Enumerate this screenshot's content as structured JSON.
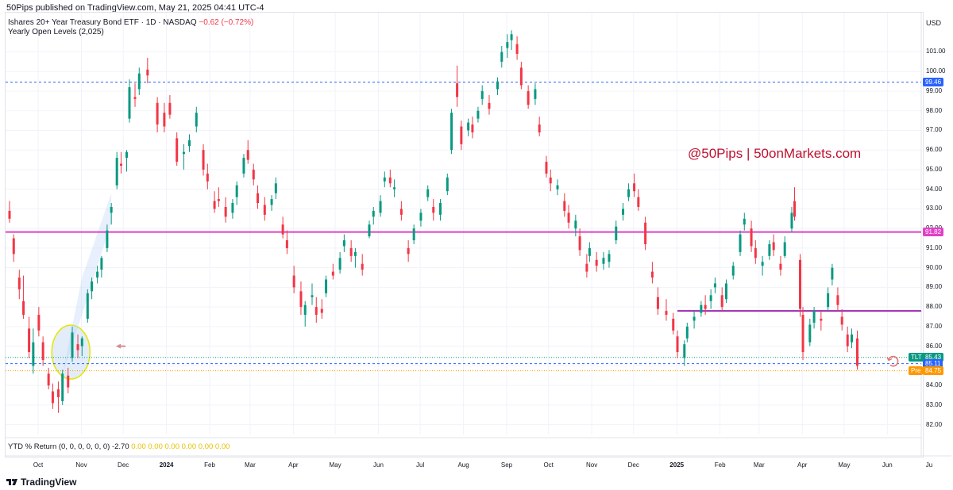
{
  "header": {
    "published": "50Pips published on TradingView.com, May 21, 2025 04:41 UTC-4",
    "symbol_line": "Ishares 20+ Year Treasury Bond ETF · 1D · NASDAQ",
    "change": "−0.62 (−0.72%)",
    "indicator_line": "Yearly Open Levels (2,025)",
    "currency": "USD"
  },
  "watermark": "@50Pips | 50onMarkets.com",
  "ytd": {
    "label": "YTD % Return (0, 0, 0, 0, 0, 0)",
    "value": "-2.70",
    "zeros": "0.00 0.00 0.00 0.00 0.00 0.00"
  },
  "footer": {
    "brand": "TradingView"
  },
  "colors": {
    "up": "#089981",
    "down": "#f23645",
    "magenta": "#e040c8",
    "purple": "#9c27b0",
    "blue": "#2962ff",
    "orange": "#ff9800",
    "highlight_stroke": "#e5e500",
    "highlight_fill": "#dbe9f7"
  },
  "chart_data": {
    "type": "candlestick",
    "ylim": [
      81.5,
      103.0
    ],
    "y_ticks": [
      "82.00",
      "83.00",
      "84.00",
      "85.00",
      "86.00",
      "87.00",
      "88.00",
      "89.00",
      "90.00",
      "91.00",
      "92.00",
      "93.00",
      "94.00",
      "95.00",
      "96.00",
      "97.00",
      "98.00",
      "99.00",
      "100.00",
      "101.00"
    ],
    "x_ticks": [
      {
        "label": "Oct",
        "x": "2023-10-01",
        "bold": false
      },
      {
        "label": "Nov",
        "x": "2023-11-01",
        "bold": false
      },
      {
        "label": "Dec",
        "x": "2023-12-01",
        "bold": false
      },
      {
        "label": "2024",
        "x": "2024-01-01",
        "bold": true
      },
      {
        "label": "Feb",
        "x": "2024-02-01",
        "bold": false
      },
      {
        "label": "Mar",
        "x": "2024-03-01",
        "bold": false
      },
      {
        "label": "Apr",
        "x": "2024-04-01",
        "bold": false
      },
      {
        "label": "May",
        "x": "2024-05-01",
        "bold": false
      },
      {
        "label": "Jun",
        "x": "2024-06-01",
        "bold": false
      },
      {
        "label": "Jul",
        "x": "2024-07-01",
        "bold": false
      },
      {
        "label": "Aug",
        "x": "2024-08-01",
        "bold": false
      },
      {
        "label": "Sep",
        "x": "2024-09-01",
        "bold": false
      },
      {
        "label": "Oct",
        "x": "2024-10-01",
        "bold": false
      },
      {
        "label": "Nov",
        "x": "2024-11-01",
        "bold": false
      },
      {
        "label": "Dec",
        "x": "2024-12-01",
        "bold": false
      },
      {
        "label": "2025",
        "x": "2025-01-01",
        "bold": true
      },
      {
        "label": "Feb",
        "x": "2025-02-01",
        "bold": false
      },
      {
        "label": "Mar",
        "x": "2025-03-01",
        "bold": false
      },
      {
        "label": "Apr",
        "x": "2025-04-01",
        "bold": false
      },
      {
        "label": "May",
        "x": "2025-05-01",
        "bold": false
      },
      {
        "label": "Jun",
        "x": "2025-06-01",
        "bold": false
      },
      {
        "label": "Ju",
        "x": "2025-07-01",
        "bold": false
      }
    ],
    "x_range": [
      "2023-09-19",
      "2025-07-01"
    ],
    "levels": [
      {
        "value": 99.46,
        "label": "99.46",
        "style": "dashed",
        "color": "#2962ff"
      },
      {
        "value": 91.82,
        "label": "91.82",
        "style": "solid",
        "color": "#e040c8"
      },
      {
        "value": 87.8,
        "label": "",
        "style": "solid",
        "color": "#9c27b0",
        "from": "2025-01-10"
      },
      {
        "value": 85.43,
        "label": "85.43",
        "tag": "TLT",
        "style": "dotted",
        "color": "#089981"
      },
      {
        "value": 85.11,
        "label": "85.11",
        "style": "dashed",
        "color": "#2962ff"
      },
      {
        "value": 84.75,
        "label": "84.75",
        "tag": "Pre",
        "style": "dotted",
        "color": "#ff9800"
      }
    ],
    "candles": [
      [
        "2023-09-19",
        92.9,
        93.4,
        92.3,
        92.5
      ],
      [
        "2023-09-22",
        91.5,
        91.7,
        90.3,
        90.7
      ],
      [
        "2023-09-26",
        89.5,
        89.9,
        88.4,
        88.9
      ],
      [
        "2023-09-29",
        88.3,
        89.6,
        87.4,
        87.6
      ],
      [
        "2023-10-03",
        86.9,
        87.5,
        85.4,
        85.7
      ],
      [
        "2023-10-06",
        85.0,
        86.9,
        84.6,
        86.2
      ],
      [
        "2023-10-10",
        87.6,
        88.0,
        86.5,
        86.8
      ],
      [
        "2023-10-13",
        86.2,
        86.5,
        85.0,
        85.3
      ],
      [
        "2023-10-17",
        84.6,
        84.9,
        83.8,
        84.0
      ],
      [
        "2023-10-20",
        83.7,
        84.1,
        82.8,
        83.1
      ],
      [
        "2023-10-24",
        83.8,
        84.2,
        82.6,
        83.4
      ],
      [
        "2023-10-27",
        83.2,
        84.8,
        83.0,
        84.6
      ],
      [
        "2023-10-31",
        84.5,
        84.9,
        83.6,
        83.9
      ],
      [
        "2023-11-03",
        85.4,
        87.0,
        85.2,
        86.7
      ],
      [
        "2023-11-07",
        86.1,
        86.6,
        85.4,
        85.8
      ],
      [
        "2023-11-10",
        86.0,
        86.5,
        85.5,
        86.4
      ],
      [
        "2023-11-14",
        87.4,
        88.9,
        87.2,
        88.7
      ],
      [
        "2023-11-17",
        88.8,
        89.5,
        88.4,
        89.3
      ],
      [
        "2023-11-21",
        89.5,
        90.1,
        89.2,
        89.8
      ],
      [
        "2023-11-24",
        89.9,
        90.6,
        89.5,
        90.5
      ],
      [
        "2023-11-28",
        91.0,
        92.2,
        90.8,
        91.9
      ],
      [
        "2023-12-01",
        92.8,
        93.3,
        92.2,
        93.1
      ],
      [
        "2023-12-05",
        94.2,
        95.9,
        94.0,
        95.6
      ],
      [
        "2023-12-08",
        95.3,
        95.9,
        94.8,
        95.2
      ],
      [
        "2023-12-12",
        95.6,
        96.0,
        94.9,
        95.9
      ],
      [
        "2023-12-14",
        97.6,
        99.6,
        97.4,
        99.2
      ],
      [
        "2023-12-18",
        98.7,
        99.4,
        98.2,
        98.6
      ],
      [
        "2023-12-21",
        99.1,
        100.2,
        98.8,
        99.9
      ],
      [
        "2023-12-27",
        100.1,
        100.7,
        99.4,
        99.8
      ],
      [
        "2024-01-03",
        98.4,
        98.7,
        96.9,
        97.3
      ],
      [
        "2024-01-08",
        97.9,
        98.4,
        96.9,
        97.2
      ],
      [
        "2024-01-12",
        98.4,
        98.8,
        97.6,
        97.8
      ],
      [
        "2024-01-17",
        96.6,
        96.9,
        95.2,
        95.4
      ],
      [
        "2024-01-22",
        95.8,
        96.3,
        95.0,
        95.9
      ],
      [
        "2024-01-26",
        96.2,
        96.8,
        95.9,
        96.5
      ],
      [
        "2024-01-31",
        97.2,
        98.2,
        96.9,
        97.9
      ],
      [
        "2024-02-05",
        96.0,
        96.3,
        94.7,
        95.0
      ],
      [
        "2024-02-08",
        94.8,
        95.3,
        94.0,
        94.4
      ],
      [
        "2024-02-13",
        93.4,
        93.9,
        92.8,
        93.0
      ],
      [
        "2024-02-16",
        93.5,
        94.1,
        93.1,
        93.4
      ],
      [
        "2024-02-21",
        93.1,
        93.6,
        92.3,
        92.6
      ],
      [
        "2024-02-26",
        92.8,
        93.5,
        92.5,
        93.3
      ],
      [
        "2024-02-29",
        93.6,
        94.4,
        93.2,
        94.2
      ],
      [
        "2024-03-05",
        94.8,
        95.8,
        94.6,
        95.6
      ],
      [
        "2024-03-08",
        96.0,
        96.5,
        95.3,
        95.5
      ],
      [
        "2024-03-12",
        95.0,
        95.3,
        94.2,
        94.5
      ],
      [
        "2024-03-15",
        93.8,
        94.2,
        93.0,
        93.3
      ],
      [
        "2024-03-20",
        93.2,
        93.6,
        92.4,
        92.7
      ],
      [
        "2024-03-25",
        93.2,
        93.7,
        92.9,
        93.5
      ],
      [
        "2024-03-28",
        93.8,
        94.6,
        93.5,
        94.3
      ],
      [
        "2024-04-02",
        92.2,
        92.6,
        91.5,
        91.7
      ],
      [
        "2024-04-05",
        91.4,
        91.9,
        90.7,
        91.0
      ],
      [
        "2024-04-10",
        89.6,
        90.1,
        88.7,
        89.0
      ],
      [
        "2024-04-15",
        88.8,
        89.3,
        87.6,
        88.0
      ],
      [
        "2024-04-18",
        87.6,
        88.3,
        87.0,
        88.1
      ],
      [
        "2024-04-23",
        88.5,
        89.2,
        88.1,
        88.6
      ],
      [
        "2024-04-26",
        88.0,
        88.5,
        87.2,
        87.6
      ],
      [
        "2024-04-30",
        87.9,
        88.4,
        87.4,
        87.7
      ],
      [
        "2024-05-03",
        88.7,
        89.6,
        88.5,
        89.4
      ],
      [
        "2024-05-08",
        89.8,
        90.2,
        89.4,
        89.6
      ],
      [
        "2024-05-13",
        89.9,
        90.8,
        89.7,
        90.5
      ],
      [
        "2024-05-16",
        91.1,
        91.7,
        90.8,
        91.4
      ],
      [
        "2024-05-21",
        91.0,
        91.4,
        90.3,
        90.6
      ],
      [
        "2024-05-24",
        90.6,
        91.0,
        90.0,
        90.8
      ],
      [
        "2024-05-29",
        90.2,
        90.7,
        89.6,
        89.9
      ],
      [
        "2024-06-03",
        91.6,
        92.4,
        91.5,
        92.2
      ],
      [
        "2024-06-06",
        92.6,
        93.1,
        92.2,
        92.9
      ],
      [
        "2024-06-11",
        92.8,
        93.7,
        92.6,
        93.4
      ],
      [
        "2024-06-14",
        94.4,
        94.9,
        94.1,
        94.6
      ],
      [
        "2024-06-18",
        94.6,
        95.0,
        94.1,
        94.3
      ],
      [
        "2024-06-21",
        94.0,
        94.5,
        93.6,
        94.1
      ],
      [
        "2024-06-26",
        93.0,
        93.4,
        92.4,
        92.7
      ],
      [
        "2024-07-01",
        91.0,
        91.4,
        90.3,
        90.7
      ],
      [
        "2024-07-05",
        91.4,
        92.2,
        91.2,
        92.0
      ],
      [
        "2024-07-10",
        92.4,
        93.0,
        92.1,
        92.8
      ],
      [
        "2024-07-15",
        93.6,
        94.2,
        93.4,
        94.0
      ],
      [
        "2024-07-19",
        93.1,
        93.5,
        92.4,
        92.8
      ],
      [
        "2024-07-24",
        92.7,
        93.5,
        92.4,
        93.3
      ],
      [
        "2024-07-29",
        93.9,
        94.8,
        93.7,
        94.6
      ],
      [
        "2024-08-01",
        96.0,
        98.1,
        95.8,
        97.9
      ],
      [
        "2024-08-05",
        99.4,
        100.3,
        98.2,
        98.7
      ],
      [
        "2024-08-08",
        97.2,
        97.5,
        96.0,
        96.3
      ],
      [
        "2024-08-13",
        97.0,
        97.6,
        96.7,
        97.4
      ],
      [
        "2024-08-16",
        97.3,
        97.7,
        96.6,
        96.9
      ],
      [
        "2024-08-20",
        97.6,
        98.2,
        97.4,
        98.0
      ],
      [
        "2024-08-23",
        98.6,
        99.3,
        98.3,
        99.0
      ],
      [
        "2024-08-28",
        98.4,
        98.8,
        97.8,
        98.1
      ],
      [
        "2024-09-03",
        99.1,
        99.7,
        98.8,
        99.5
      ],
      [
        "2024-09-06",
        100.5,
        101.3,
        100.2,
        101.0
      ],
      [
        "2024-09-10",
        101.2,
        101.9,
        100.7,
        101.5
      ],
      [
        "2024-09-13",
        101.6,
        102.1,
        101.1,
        101.9
      ],
      [
        "2024-09-17",
        101.4,
        101.8,
        100.6,
        100.9
      ],
      [
        "2024-09-20",
        100.2,
        100.5,
        99.1,
        99.3
      ],
      [
        "2024-09-25",
        99.0,
        99.3,
        98.1,
        98.3
      ],
      [
        "2024-09-30",
        98.6,
        99.4,
        98.3,
        99.1
      ],
      [
        "2024-10-03",
        97.3,
        97.7,
        96.7,
        96.9
      ],
      [
        "2024-10-08",
        95.4,
        95.7,
        94.6,
        94.8
      ],
      [
        "2024-10-11",
        94.6,
        95.0,
        93.9,
        94.3
      ],
      [
        "2024-10-16",
        94.0,
        94.5,
        93.7,
        94.2
      ],
      [
        "2024-10-21",
        93.4,
        93.8,
        92.6,
        92.9
      ],
      [
        "2024-10-24",
        92.8,
        93.2,
        92.0,
        92.3
      ],
      [
        "2024-10-29",
        92.0,
        92.7,
        91.6,
        92.4
      ],
      [
        "2024-11-01",
        91.6,
        92.0,
        90.6,
        90.9
      ],
      [
        "2024-11-06",
        90.2,
        90.7,
        89.5,
        89.8
      ],
      [
        "2024-11-08",
        90.6,
        91.3,
        90.3,
        91.0
      ],
      [
        "2024-11-13",
        90.4,
        90.8,
        89.8,
        90.1
      ],
      [
        "2024-11-18",
        90.2,
        90.8,
        89.9,
        90.5
      ],
      [
        "2024-11-22",
        90.3,
        90.9,
        90.0,
        90.7
      ],
      [
        "2024-11-27",
        91.4,
        92.4,
        91.2,
        92.1
      ],
      [
        "2024-12-02",
        92.7,
        93.3,
        92.4,
        93.0
      ],
      [
        "2024-12-06",
        93.6,
        94.3,
        93.4,
        94.0
      ],
      [
        "2024-12-10",
        94.3,
        94.8,
        93.6,
        93.9
      ],
      [
        "2024-12-13",
        93.6,
        94.0,
        92.9,
        93.1
      ],
      [
        "2024-12-18",
        92.3,
        92.6,
        90.9,
        91.2
      ],
      [
        "2024-12-23",
        89.8,
        90.3,
        89.2,
        89.5
      ],
      [
        "2024-12-27",
        88.5,
        89.0,
        87.6,
        87.9
      ],
      [
        "2025-01-02",
        87.8,
        88.4,
        87.3,
        87.6
      ],
      [
        "2025-01-07",
        87.4,
        87.7,
        86.6,
        86.8
      ],
      [
        "2025-01-10",
        86.5,
        86.8,
        85.4,
        85.7
      ],
      [
        "2025-01-15",
        85.4,
        86.3,
        85.0,
        86.1
      ],
      [
        "2025-01-17",
        86.4,
        87.2,
        86.2,
        87.0
      ],
      [
        "2025-01-22",
        87.3,
        87.8,
        86.9,
        87.5
      ],
      [
        "2025-01-27",
        87.7,
        88.3,
        87.5,
        88.1
      ],
      [
        "2025-01-30",
        88.1,
        88.6,
        87.6,
        87.9
      ],
      [
        "2025-02-03",
        88.3,
        88.9,
        87.9,
        88.6
      ],
      [
        "2025-02-06",
        89.0,
        89.5,
        88.7,
        89.2
      ],
      [
        "2025-02-11",
        88.6,
        89.0,
        87.8,
        88.0
      ],
      [
        "2025-02-14",
        88.4,
        89.4,
        88.2,
        89.2
      ],
      [
        "2025-02-19",
        89.6,
        90.3,
        89.4,
        90.1
      ],
      [
        "2025-02-24",
        90.8,
        91.9,
        90.6,
        91.7
      ],
      [
        "2025-02-27",
        92.2,
        92.8,
        91.9,
        92.5
      ],
      [
        "2025-03-04",
        92.0,
        92.4,
        90.8,
        91.1
      ],
      [
        "2025-03-07",
        91.0,
        91.4,
        90.2,
        90.5
      ],
      [
        "2025-03-12",
        90.1,
        90.6,
        89.6,
        90.3
      ],
      [
        "2025-03-17",
        90.6,
        91.4,
        90.4,
        91.2
      ],
      [
        "2025-03-20",
        91.3,
        91.7,
        90.6,
        90.9
      ],
      [
        "2025-03-25",
        90.2,
        90.6,
        89.6,
        89.9
      ],
      [
        "2025-03-28",
        90.6,
        91.6,
        90.5,
        91.3
      ],
      [
        "2025-04-02",
        92.0,
        93.1,
        91.8,
        92.8
      ],
      [
        "2025-04-04",
        93.4,
        94.1,
        92.4,
        92.6
      ],
      [
        "2025-04-08",
        90.4,
        90.7,
        87.5,
        87.9
      ],
      [
        "2025-04-10",
        87.6,
        88.0,
        85.3,
        85.7
      ],
      [
        "2025-04-15",
        86.2,
        87.4,
        86.0,
        87.1
      ],
      [
        "2025-04-18",
        87.2,
        88.0,
        86.9,
        87.8
      ],
      [
        "2025-04-23",
        87.4,
        87.8,
        86.8,
        87.3
      ],
      [
        "2025-04-28",
        88.0,
        89.0,
        87.8,
        88.7
      ],
      [
        "2025-05-01",
        89.4,
        90.2,
        89.1,
        90.0
      ],
      [
        "2025-05-05",
        88.6,
        89.0,
        87.8,
        88.1
      ],
      [
        "2025-05-08",
        87.5,
        87.9,
        86.8,
        87.1
      ],
      [
        "2025-05-12",
        86.6,
        87.0,
        85.7,
        86.0
      ],
      [
        "2025-05-15",
        86.2,
        86.9,
        85.9,
        86.6
      ],
      [
        "2025-05-19",
        86.4,
        86.8,
        84.8,
        85.0
      ]
    ]
  }
}
